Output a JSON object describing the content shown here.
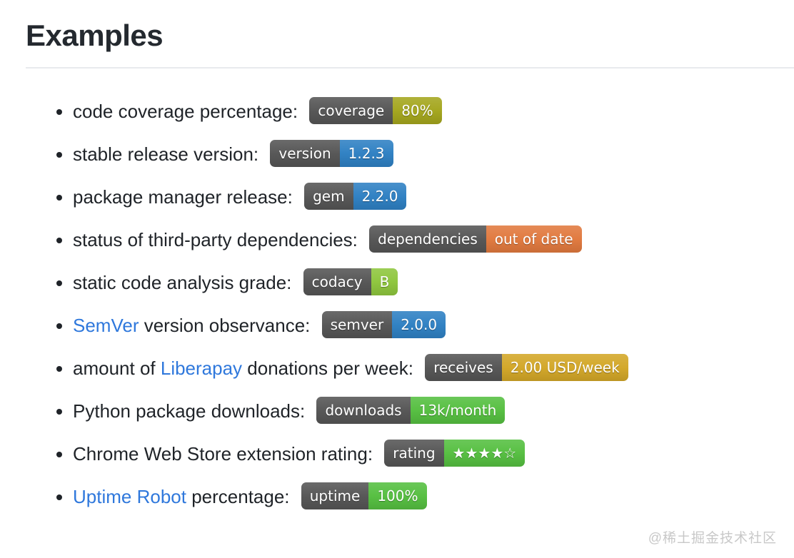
{
  "page": {
    "title": "Examples",
    "watermark": "@稀土掘金技术社区"
  },
  "theme": {
    "badge_label_bg": "#555555",
    "link_color": "#2f78dc"
  },
  "list": {
    "items": [
      {
        "segments": [
          {
            "text": "code coverage percentage: ",
            "link": false
          }
        ],
        "badge": {
          "label": "coverage",
          "value": "80%",
          "value_color": "#a4a61d"
        }
      },
      {
        "segments": [
          {
            "text": "stable release version: ",
            "link": false
          }
        ],
        "badge": {
          "label": "version",
          "value": "1.2.3",
          "value_color": "#2e80c3"
        }
      },
      {
        "segments": [
          {
            "text": "package manager release: ",
            "link": false
          }
        ],
        "badge": {
          "label": "gem",
          "value": "2.2.0",
          "value_color": "#2e80c3"
        }
      },
      {
        "segments": [
          {
            "text": "status of third-party dependencies: ",
            "link": false
          }
        ],
        "badge": {
          "label": "dependencies",
          "value": "out of date",
          "value_color": "#e1793e"
        }
      },
      {
        "segments": [
          {
            "text": "static code analysis grade: ",
            "link": false
          }
        ],
        "badge": {
          "label": "codacy",
          "value": "B",
          "value_color": "#8ec63d"
        }
      },
      {
        "segments": [
          {
            "text": "SemVer",
            "link": true
          },
          {
            "text": " version observance: ",
            "link": false
          }
        ],
        "badge": {
          "label": "semver",
          "value": "2.0.0",
          "value_color": "#2e80c3"
        }
      },
      {
        "segments": [
          {
            "text": "amount of ",
            "link": false
          },
          {
            "text": "Liberapay",
            "link": true
          },
          {
            "text": " donations per week: ",
            "link": false
          }
        ],
        "badge": {
          "label": "receives",
          "value": "2.00 USD/week",
          "value_color": "#d3a727"
        }
      },
      {
        "segments": [
          {
            "text": "Python package downloads: ",
            "link": false
          }
        ],
        "badge": {
          "label": "downloads",
          "value": "13k/month",
          "value_color": "#55bf40"
        }
      },
      {
        "segments": [
          {
            "text": "Chrome Web Store extension rating: ",
            "link": false
          }
        ],
        "badge": {
          "label": "rating",
          "value": "★★★★☆",
          "value_color": "#55bf40"
        }
      },
      {
        "segments": [
          {
            "text": "Uptime Robot",
            "link": true
          },
          {
            "text": " percentage: ",
            "link": false
          }
        ],
        "badge": {
          "label": "uptime",
          "value": "100%",
          "value_color": "#55bf40"
        }
      }
    ]
  }
}
